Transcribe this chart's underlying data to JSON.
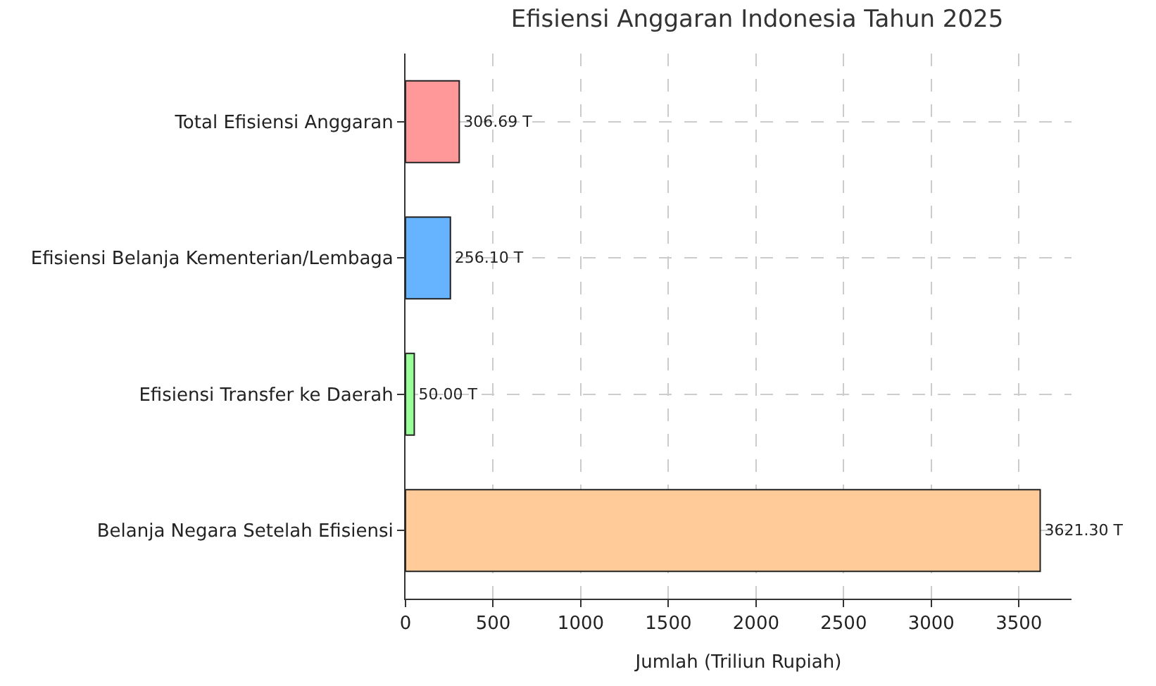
{
  "chart_data": {
    "type": "bar",
    "orientation": "horizontal",
    "title": "Efisiensi Anggaran Indonesia Tahun 2025",
    "xlabel": "Jumlah (Triliun Rupiah)",
    "categories": [
      "Total Efisiensi Anggaran",
      "Efisiensi Belanja Kementerian/Lembaga",
      "Efisiensi Transfer ke Daerah",
      "Belanja Negara Setelah Efisiensi"
    ],
    "values": [
      306.69,
      256.1,
      50.0,
      3621.3
    ],
    "colors": [
      "#ff9999",
      "#66b3ff",
      "#99ff99",
      "#ffcc99"
    ],
    "value_labels": [
      "306.69 T",
      "256.10 T",
      "50.00 T",
      "3621.30 T"
    ],
    "xlim": [
      0,
      3800
    ],
    "xticks": [
      0,
      500,
      1000,
      1500,
      2000,
      2500,
      3000,
      3500
    ],
    "grid": true
  }
}
